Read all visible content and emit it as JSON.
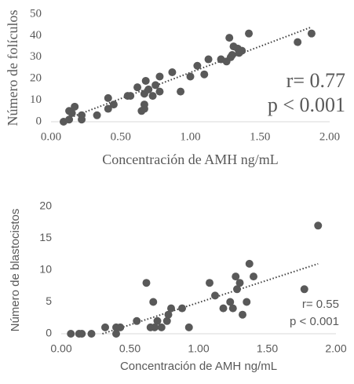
{
  "chart_data": [
    {
      "type": "scatter",
      "color": "#595959",
      "x": [
        0.09,
        0.13,
        0.13,
        0.17,
        0.15,
        0.22,
        0.22,
        0.33,
        0.41,
        0.41,
        0.45,
        0.55,
        0.57,
        0.62,
        0.65,
        0.67,
        0.67,
        0.67,
        0.68,
        0.7,
        0.73,
        0.75,
        0.78,
        0.78,
        0.87,
        0.93,
        1.0,
        1.05,
        1.1,
        1.13,
        1.22,
        1.26,
        1.28,
        1.29,
        1.3,
        1.31,
        1.34,
        1.35,
        1.37,
        1.42,
        1.77,
        1.87
      ],
      "values": [
        0,
        1,
        5,
        7,
        4,
        1,
        3,
        3,
        6,
        11,
        8,
        12,
        12,
        16,
        5,
        6,
        8,
        13,
        19,
        15,
        12,
        17,
        21,
        14,
        23,
        14,
        21,
        26,
        22,
        29,
        29,
        28,
        39,
        30,
        31,
        35,
        34,
        32,
        33,
        41,
        37,
        41
      ],
      "trendline": {
        "x": [
          0.1,
          1.87
        ],
        "values": [
          1,
          44
        ]
      },
      "xlabel": "Concentración de AMH ng/mL",
      "ylabel": "Número de folículos",
      "annotations": [
        "r= 0.77",
        "p < 0.001"
      ],
      "xlim": [
        0,
        2
      ],
      "ylim": [
        0,
        50
      ],
      "xticks": [
        {
          "value": 0,
          "label": "0.00"
        },
        {
          "value": 0.5,
          "label": "0.50"
        },
        {
          "value": 1,
          "label": "1.00"
        },
        {
          "value": 1.5,
          "label": "1.50"
        },
        {
          "value": 2,
          "label": "2.00"
        }
      ],
      "yticks": [
        0,
        10,
        20,
        30,
        40,
        50
      ]
    },
    {
      "type": "scatter",
      "color": "#595959",
      "x": [
        0.07,
        0.13,
        0.15,
        0.22,
        0.32,
        0.4,
        0.4,
        0.43,
        0.55,
        0.62,
        0.65,
        0.67,
        0.68,
        0.7,
        0.73,
        0.77,
        0.78,
        0.8,
        0.88,
        0.93,
        1.08,
        1.12,
        1.18,
        1.23,
        1.25,
        1.27,
        1.28,
        1.3,
        1.32,
        1.35,
        1.37,
        1.4,
        1.77,
        1.87
      ],
      "values": [
        0,
        0,
        0,
        0,
        1,
        1,
        0,
        1,
        2,
        8,
        1,
        5,
        1,
        2,
        1,
        2,
        3,
        4,
        4,
        1,
        8,
        6,
        4,
        5,
        4,
        9,
        7,
        8,
        3,
        5,
        11,
        9,
        7,
        17
      ],
      "trendline": {
        "x": [
          0.3,
          1.87
        ],
        "values": [
          0,
          11
        ]
      },
      "xlabel": "Concentración de AMH ng/mL",
      "ylabel": "Número de blastocistos",
      "annotations": [
        "r= 0.55",
        "p < 0.001"
      ],
      "xlim": [
        0,
        2
      ],
      "ylim": [
        0,
        20
      ],
      "xticks": [
        {
          "value": 0,
          "label": "0.00"
        },
        {
          "value": 0.5,
          "label": "0.50"
        },
        {
          "value": 1,
          "label": "1.00"
        },
        {
          "value": 1.5,
          "label": "1.50"
        },
        {
          "value": 2,
          "label": "2.00"
        }
      ],
      "yticks": [
        0,
        5,
        10,
        15,
        20
      ]
    }
  ]
}
